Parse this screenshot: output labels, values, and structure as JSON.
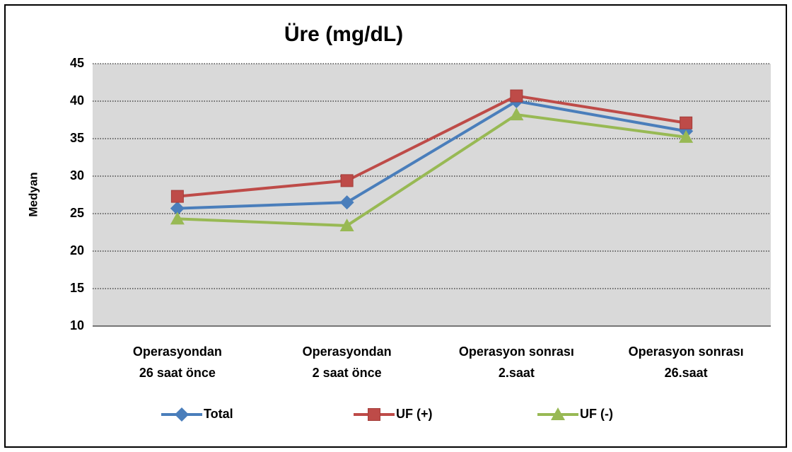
{
  "chart_data": {
    "type": "line",
    "title": "Üre (mg/dL)",
    "y_label": "Medyan",
    "categories": [
      "Operasyondan\n26 saat önce",
      "Operasyondan\n2 saat önce",
      "Operasyon sonrası\n2.saat",
      "Operasyon sonrası\n26.saat"
    ],
    "series": [
      {
        "name": "Total",
        "color": "#4a7ebb",
        "marker": "diamond",
        "values": [
          25.7,
          26.5,
          40,
          36
        ]
      },
      {
        "name": "UF (+)",
        "color": "#be4b48",
        "marker": "square",
        "values": [
          27.3,
          29.4,
          40.7,
          37.1
        ]
      },
      {
        "name": "UF (-)",
        "color": "#98b954",
        "marker": "triangle",
        "values": [
          24.3,
          23.4,
          38.2,
          35.2
        ]
      }
    ],
    "ylim": [
      10,
      45
    ],
    "yticks": [
      10,
      15,
      20,
      25,
      30,
      35,
      40,
      45
    ],
    "grid": true,
    "legend": "bottom"
  }
}
